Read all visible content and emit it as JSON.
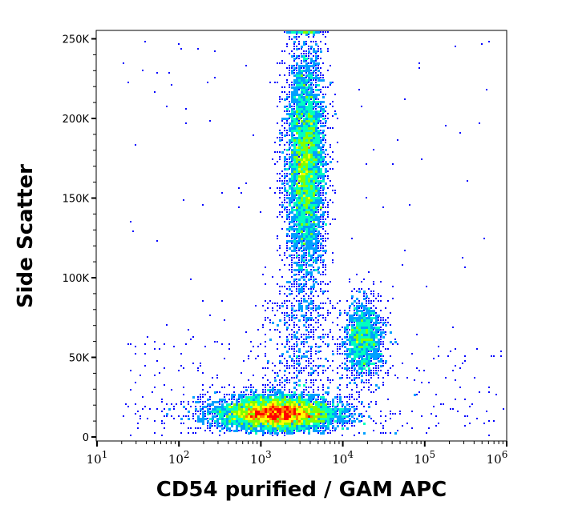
{
  "chart_data": {
    "type": "scatter",
    "subtype": "density pseudocolor dot plot",
    "xlabel": "CD54 purified / GAM APC",
    "ylabel": "Side Scatter",
    "x_scale": "log",
    "xlim": [
      10,
      1000000
    ],
    "ylim": [
      0,
      255000
    ],
    "x_ticks": [
      {
        "base": "10",
        "exp": "1"
      },
      {
        "base": "10",
        "exp": "2"
      },
      {
        "base": "10",
        "exp": "3"
      },
      {
        "base": "10",
        "exp": "4"
      },
      {
        "base": "10",
        "exp": "5"
      },
      {
        "base": "10",
        "exp": "6"
      }
    ],
    "y_ticks": [
      {
        "value": 0,
        "label": "0"
      },
      {
        "value": 50000,
        "label": "50K"
      },
      {
        "value": 100000,
        "label": "100K"
      },
      {
        "value": 150000,
        "label": "150K"
      },
      {
        "value": 200000,
        "label": "200K"
      },
      {
        "value": 250000,
        "label": "250K"
      }
    ],
    "populations": [
      {
        "x_center": 1600,
        "x_log_sd": 0.33,
        "y_center": 15000,
        "y_sd": 5500,
        "relative_events": 6000
      },
      {
        "x_center": 3500,
        "x_log_sd": 0.12,
        "y_center": 170000,
        "y_sd": 38000,
        "relative_events": 5000
      },
      {
        "x_center": 18000,
        "x_log_sd": 0.13,
        "y_center": 62000,
        "y_sd": 13000,
        "relative_events": 1400
      }
    ],
    "colormap": [
      "#0000ff",
      "#00a0ff",
      "#00ffc0",
      "#80ff00",
      "#ffff00",
      "#ff8000",
      "#ff0000"
    ],
    "grid": false,
    "legend": "none"
  }
}
